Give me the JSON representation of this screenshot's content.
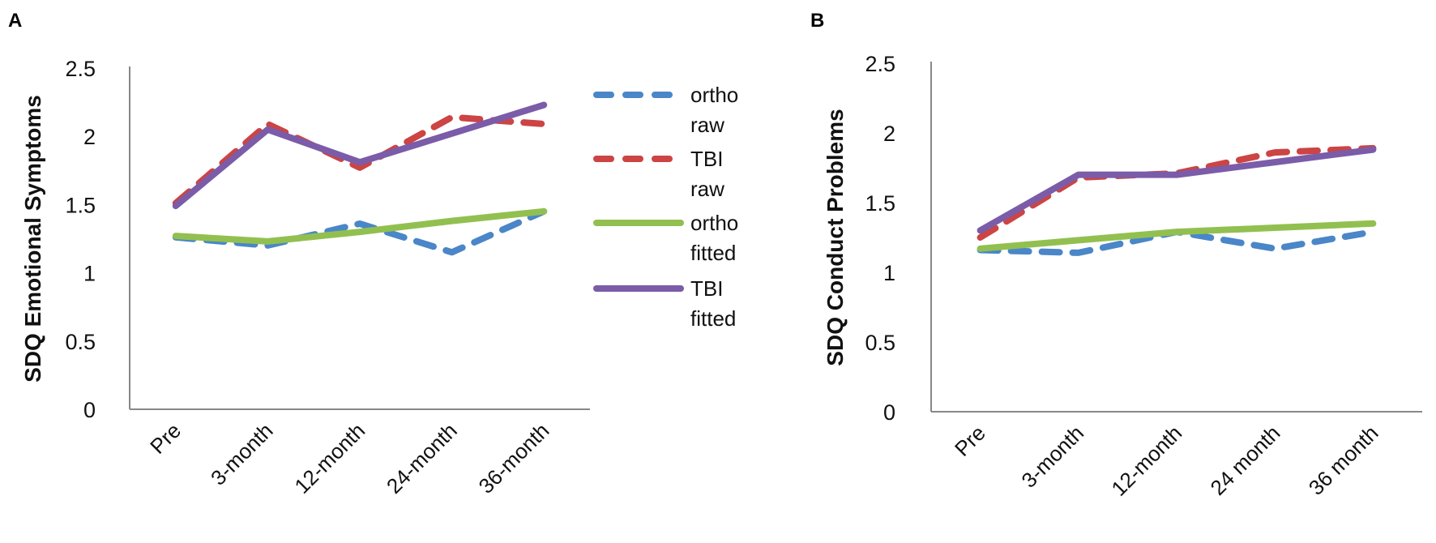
{
  "chart_data": [
    {
      "panel_label": "A",
      "type": "line",
      "ylabel": "SDQ Emotional Symptoms",
      "xlabel": "",
      "ylim": [
        0,
        2.5
      ],
      "yticks": [
        "0",
        "0.5",
        "1",
        "1.5",
        "2",
        "2.5"
      ],
      "categories": [
        "Pre",
        "3-month",
        "12-month",
        "24-month",
        "36-month"
      ],
      "grid": false,
      "legend_position": "right",
      "series": [
        {
          "name": "ortho raw",
          "legend_lines": [
            "ortho",
            "raw"
          ],
          "color": "#4a86c8",
          "dashed": true,
          "values": [
            1.26,
            1.2,
            1.36,
            1.15,
            1.45
          ]
        },
        {
          "name": "TBI raw",
          "legend_lines": [
            "TBI",
            "raw"
          ],
          "color": "#cc4444",
          "dashed": true,
          "values": [
            1.51,
            2.09,
            1.77,
            2.14,
            2.09
          ]
        },
        {
          "name": "ortho fitted",
          "legend_lines": [
            "ortho",
            "fitted"
          ],
          "color": "#92c050",
          "dashed": false,
          "values": [
            1.27,
            1.23,
            1.3,
            1.38,
            1.45
          ]
        },
        {
          "name": "TBI fitted",
          "legend_lines": [
            "TBI",
            "fitted"
          ],
          "color": "#7b5ca8",
          "dashed": false,
          "values": [
            1.49,
            2.05,
            1.81,
            2.02,
            2.23
          ]
        }
      ]
    },
    {
      "panel_label": "B",
      "type": "line",
      "ylabel": "SDQ Conduct Problems",
      "xlabel": "",
      "ylim": [
        0,
        2.5
      ],
      "yticks": [
        "0",
        "0.5",
        "1",
        "1.5",
        "2",
        "2.5"
      ],
      "categories": [
        "Pre",
        "3-month",
        "12-month",
        "24 month",
        "36 month"
      ],
      "grid": false,
      "series": [
        {
          "name": "ortho raw",
          "color": "#4a86c8",
          "dashed": true,
          "values": [
            1.16,
            1.14,
            1.29,
            1.17,
            1.29
          ]
        },
        {
          "name": "TBI raw",
          "color": "#cc4444",
          "dashed": true,
          "values": [
            1.25,
            1.68,
            1.71,
            1.86,
            1.89
          ]
        },
        {
          "name": "ortho fitted",
          "color": "#92c050",
          "dashed": false,
          "values": [
            1.17,
            1.23,
            1.29,
            1.32,
            1.35
          ]
        },
        {
          "name": "TBI fitted",
          "color": "#7b5ca8",
          "dashed": false,
          "values": [
            1.3,
            1.7,
            1.7,
            1.79,
            1.88
          ]
        }
      ]
    }
  ]
}
